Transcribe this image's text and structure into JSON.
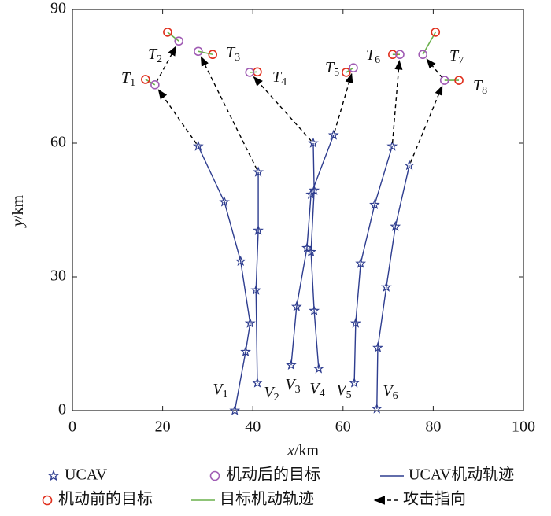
{
  "chart_data": {
    "type": "trajectory",
    "xlabel": "x/km",
    "ylabel": "y/km",
    "xlim": [
      0,
      100
    ],
    "ylim": [
      0,
      90
    ],
    "xticks": [
      0,
      20,
      40,
      60,
      80,
      100
    ],
    "yticks": [
      0,
      30,
      60,
      90
    ],
    "ucav_color": "#2e3d8f",
    "before_color": "#e0301e",
    "after_color": "#a05cb4",
    "track_color": "#6ab04c",
    "attack_color": "#000000",
    "ucav_paths": [
      {
        "name": "V1",
        "x": [
          36,
          38.4,
          39.4,
          37.3,
          33.7,
          27.9
        ],
        "y": [
          0,
          13.2,
          19.6,
          33.5,
          46.8,
          59.3
        ]
      },
      {
        "name": "V2",
        "x": [
          41,
          40.7,
          41.2,
          41.2
        ],
        "y": [
          6.2,
          27,
          40.4,
          53.5
        ]
      },
      {
        "name": "V3",
        "x": [
          48.5,
          49.7,
          52,
          52.9,
          57.9
        ],
        "y": [
          10.2,
          23.3,
          36.5,
          48.5,
          61.8
        ]
      },
      {
        "name": "V4",
        "x": [
          54.6,
          53.6,
          52.9,
          53.6,
          53.4
        ],
        "y": [
          9.4,
          22.4,
          35.6,
          49.4,
          60
        ]
      },
      {
        "name": "V5",
        "x": [
          62.5,
          62.8,
          63.9,
          67,
          70.9
        ],
        "y": [
          6.2,
          19.6,
          33,
          46.2,
          59.3
        ]
      },
      {
        "name": "V6",
        "x": [
          67.5,
          67.7,
          69.6,
          71.6,
          74.7
        ],
        "y": [
          0.4,
          14.1,
          27.7,
          41.3,
          55
        ]
      }
    ],
    "targets": [
      {
        "name": "T1",
        "before": [
          16.2,
          74.3
        ],
        "after": [
          18.3,
          73.1
        ]
      },
      {
        "name": "T2",
        "before": [
          21.1,
          84.9
        ],
        "after": [
          23.6,
          82.9
        ]
      },
      {
        "name": "T3",
        "before": [
          31.1,
          79.9
        ],
        "after": [
          27.9,
          80.6
        ]
      },
      {
        "name": "T4",
        "before": [
          41,
          76
        ],
        "after": [
          39.3,
          75.9
        ]
      },
      {
        "name": "T5",
        "before": [
          60.7,
          75.9
        ],
        "after": [
          62.3,
          76.9
        ]
      },
      {
        "name": "T6",
        "before": [
          71,
          79.9
        ],
        "after": [
          72.6,
          79.9
        ]
      },
      {
        "name": "T7",
        "before": [
          80.5,
          84.9
        ],
        "after": [
          77.7,
          79.9
        ]
      },
      {
        "name": "T8",
        "before": [
          85.7,
          74.1
        ],
        "after": [
          82.5,
          74.1
        ]
      }
    ],
    "attacks": [
      {
        "x": [
          27.9,
          18.3
        ],
        "y": [
          59.3,
          73.1
        ]
      },
      {
        "x": [
          18.3,
          23.6
        ],
        "y": [
          73.1,
          82.9
        ]
      },
      {
        "x": [
          41.2,
          27.9
        ],
        "y": [
          53.5,
          80.6
        ]
      },
      {
        "x": [
          53.4,
          39.3
        ],
        "y": [
          60,
          75.9
        ]
      },
      {
        "x": [
          57.9,
          62.3
        ],
        "y": [
          61.8,
          76.9
        ]
      },
      {
        "x": [
          70.9,
          72.6
        ],
        "y": [
          59.3,
          79.9
        ]
      },
      {
        "x": [
          74.7,
          82.5
        ],
        "y": [
          55,
          74.1
        ]
      },
      {
        "x": [
          82.5,
          77.7
        ],
        "y": [
          74.1,
          79.9
        ]
      }
    ],
    "legend": [
      {
        "label": "UCAV",
        "marker": "star"
      },
      {
        "label": "机动后的目标",
        "marker": "after"
      },
      {
        "label": "UCAV机动轨迹",
        "marker": "ucav-line"
      },
      {
        "label": "机动前的目标",
        "marker": "before"
      },
      {
        "label": "目标机动轨迹",
        "marker": "track-line"
      },
      {
        "label": "攻击指向",
        "marker": "arrow"
      }
    ]
  }
}
